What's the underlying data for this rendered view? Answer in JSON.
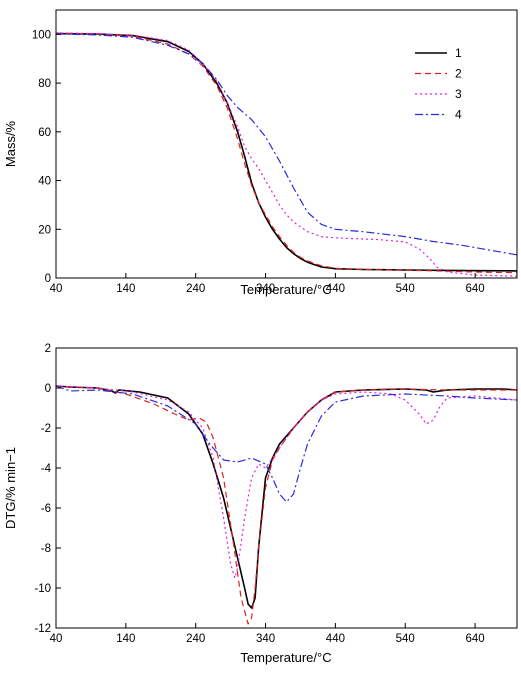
{
  "chart_data": [
    {
      "type": "line",
      "title": "",
      "xlabel": "Temperature/°C",
      "ylabel": "Mass/%",
      "xlim": [
        40,
        700
      ],
      "ylim": [
        0,
        110
      ],
      "xticks": [
        40,
        140,
        240,
        340,
        440,
        540,
        640
      ],
      "yticks": [
        0,
        20,
        40,
        60,
        80,
        100
      ],
      "grid": false,
      "legend": {
        "placement": "top-right"
      },
      "series": [
        {
          "name": "1",
          "color": "#000000",
          "dash": "solid",
          "x": [
            40,
            100,
            150,
            200,
            230,
            250,
            270,
            285,
            300,
            310,
            320,
            330,
            340,
            350,
            360,
            370,
            380,
            390,
            400,
            420,
            440,
            480,
            540,
            600,
            650,
            700
          ],
          "y": [
            100.3,
            100.1,
            99.5,
            97,
            93,
            88,
            80,
            72,
            60,
            50,
            39,
            31,
            25,
            20,
            16,
            12.5,
            10,
            8,
            6.5,
            4.5,
            3.8,
            3.5,
            3.3,
            3.1,
            3.0,
            2.9
          ]
        },
        {
          "name": "2",
          "color": "#e02020",
          "dash": "6 4",
          "x": [
            40,
            100,
            150,
            200,
            230,
            250,
            270,
            285,
            300,
            310,
            320,
            330,
            340,
            350,
            360,
            370,
            380,
            390,
            400,
            420,
            440,
            480,
            540,
            600,
            650,
            700
          ],
          "y": [
            100.5,
            100.2,
            99.3,
            96,
            92,
            87,
            79,
            70,
            57,
            47,
            38,
            31,
            26,
            21,
            17,
            13.5,
            10.5,
            8.5,
            7,
            5,
            4,
            3.5,
            3.2,
            2.8,
            2.4,
            2.2
          ]
        },
        {
          "name": "3",
          "color": "#e020e0",
          "dash": "2 3",
          "x": [
            40,
            100,
            150,
            200,
            230,
            250,
            270,
            285,
            300,
            310,
            320,
            330,
            340,
            350,
            360,
            370,
            380,
            400,
            420,
            440,
            460,
            500,
            540,
            560,
            575,
            585,
            600,
            640,
            700
          ],
          "y": [
            100.6,
            100.3,
            99.7,
            97.5,
            93.5,
            88,
            81,
            72,
            62,
            54,
            49,
            45,
            40,
            35,
            30,
            26,
            23,
            19,
            17,
            16.5,
            16.2,
            15.8,
            14.8,
            12,
            8,
            4.5,
            2.5,
            1.2,
            0.8
          ]
        },
        {
          "name": "4",
          "color": "#2a2ae0",
          "dash": "8 3 2 3",
          "x": [
            40,
            100,
            150,
            200,
            230,
            250,
            270,
            285,
            300,
            320,
            340,
            360,
            380,
            400,
            420,
            440,
            480,
            540,
            580,
            620,
            660,
            700
          ],
          "y": [
            100.2,
            99.8,
            98.8,
            95.5,
            92,
            88,
            81.5,
            75,
            70,
            65,
            58,
            48,
            37,
            27,
            22,
            20,
            19,
            17,
            15,
            13.5,
            11.5,
            9.5
          ]
        }
      ]
    },
    {
      "type": "line",
      "title": "",
      "xlabel": "Temperature/°C",
      "ylabel": "DTG/% min−1",
      "xlim": [
        40,
        700
      ],
      "ylim": [
        -12,
        2
      ],
      "xticks": [
        40,
        140,
        240,
        340,
        440,
        540,
        640
      ],
      "yticks": [
        2,
        0,
        -2,
        -4,
        -6,
        -8,
        -10,
        -12
      ],
      "grid": false,
      "series": [
        {
          "name": "1",
          "color": "#000000",
          "dash": "solid",
          "x": [
            40,
            60,
            100,
            120,
            125,
            130,
            160,
            200,
            230,
            250,
            265,
            280,
            290,
            300,
            310,
            315,
            320,
            325,
            330,
            340,
            350,
            360,
            380,
            400,
            420,
            440,
            480,
            540,
            570,
            580,
            600,
            640,
            680,
            700
          ],
          "y": [
            0.1,
            0.05,
            0,
            -0.15,
            -0.25,
            -0.1,
            -0.2,
            -0.5,
            -1.3,
            -2.3,
            -3.8,
            -5.5,
            -7.0,
            -8.5,
            -10.0,
            -10.8,
            -11.0,
            -10.5,
            -8.0,
            -4.5,
            -3.5,
            -2.8,
            -2.0,
            -1.2,
            -0.6,
            -0.2,
            -0.1,
            -0.05,
            -0.1,
            -0.2,
            -0.1,
            -0.05,
            -0.05,
            -0.1
          ]
        },
        {
          "name": "2",
          "color": "#e02020",
          "dash": "6 4",
          "x": [
            40,
            100,
            140,
            180,
            210,
            230,
            245,
            255,
            265,
            280,
            295,
            305,
            315,
            320,
            325,
            330,
            340,
            350,
            360,
            380,
            400,
            420,
            440,
            480,
            540,
            600,
            640,
            700
          ],
          "y": [
            0.1,
            0,
            -0.3,
            -0.8,
            -1.3,
            -1.6,
            -1.5,
            -1.7,
            -2.5,
            -4.5,
            -8.0,
            -10.5,
            -11.8,
            -11.5,
            -10.0,
            -8.0,
            -5.0,
            -3.6,
            -3.0,
            -2.0,
            -1.2,
            -0.6,
            -0.2,
            -0.1,
            -0.05,
            -0.1,
            -0.1,
            -0.1
          ]
        },
        {
          "name": "3",
          "color": "#e020e0",
          "dash": "2 3",
          "x": [
            40,
            100,
            150,
            200,
            230,
            250,
            265,
            280,
            290,
            296,
            300,
            310,
            320,
            330,
            340,
            350,
            360,
            380,
            400,
            420,
            440,
            480,
            520,
            540,
            560,
            570,
            580,
            590,
            600,
            640,
            700
          ],
          "y": [
            0.1,
            0,
            -0.2,
            -0.6,
            -1.2,
            -2.0,
            -3.5,
            -6.5,
            -8.8,
            -9.5,
            -9.0,
            -6.5,
            -4.5,
            -3.8,
            -4.0,
            -3.5,
            -3.0,
            -2.0,
            -1.2,
            -0.6,
            -0.3,
            -0.2,
            -0.3,
            -0.6,
            -1.3,
            -1.8,
            -1.6,
            -0.9,
            -0.5,
            -0.4,
            -0.6
          ]
        },
        {
          "name": "4",
          "color": "#2a2ae0",
          "dash": "8 3 2 3",
          "x": [
            40,
            60,
            100,
            150,
            200,
            240,
            260,
            280,
            300,
            320,
            340,
            350,
            360,
            370,
            380,
            390,
            400,
            420,
            440,
            480,
            540,
            600,
            640,
            700
          ],
          "y": [
            0.1,
            -0.15,
            -0.1,
            -0.3,
            -0.9,
            -1.8,
            -2.8,
            -3.6,
            -3.7,
            -3.5,
            -3.8,
            -4.5,
            -5.3,
            -5.7,
            -5.3,
            -4.0,
            -2.8,
            -1.4,
            -0.7,
            -0.4,
            -0.3,
            -0.4,
            -0.5,
            -0.6
          ]
        }
      ]
    }
  ]
}
